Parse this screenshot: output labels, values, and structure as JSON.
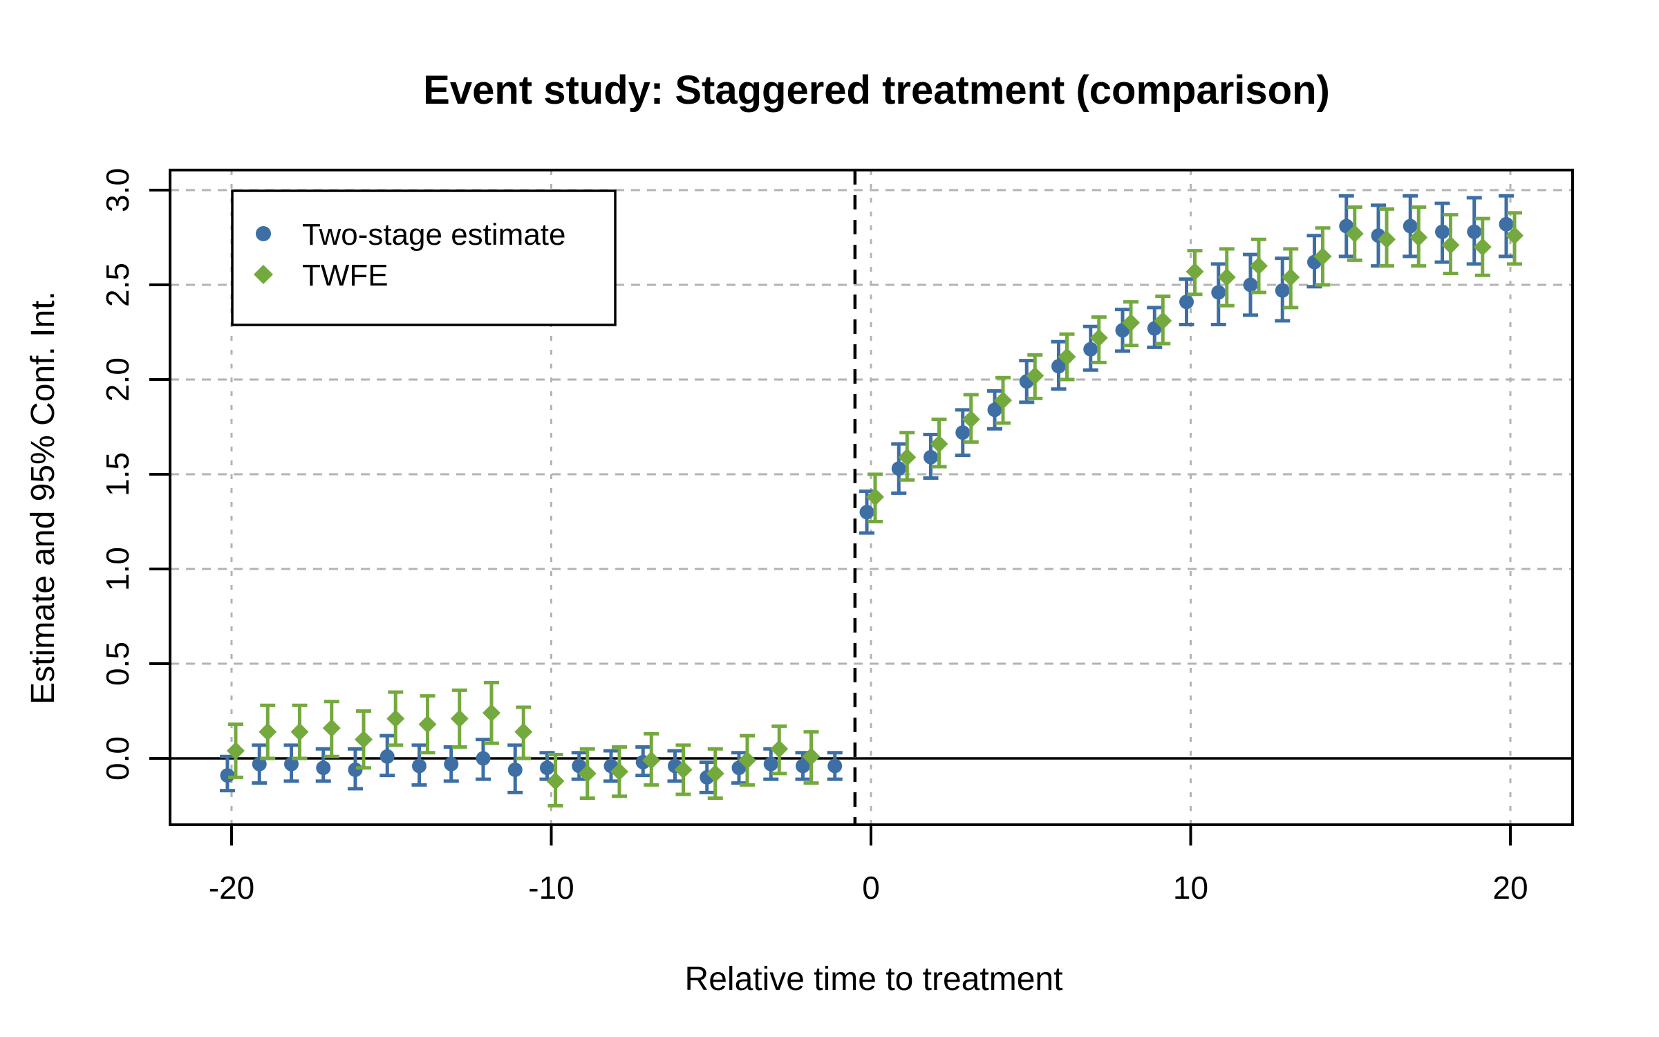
{
  "title": "Event study: Staggered treatment (comparison)",
  "axes": {
    "x_label": "Relative time to treatment",
    "y_label": "Estimate and 95% Conf. Int.",
    "x_ticks": [
      -20,
      -10,
      0,
      10,
      20
    ],
    "y_ticks": [
      0.0,
      0.5,
      1.0,
      1.5,
      2.0,
      2.5,
      3.0
    ]
  },
  "legend": {
    "items": [
      {
        "label": "Two-stage estimate",
        "marker": "circle-icon",
        "color": "#3d6fa5"
      },
      {
        "label": "TWFE",
        "marker": "diamond-icon",
        "color": "#74a93e"
      }
    ]
  },
  "colors": {
    "two_stage": "#3d6fa5",
    "twfe": "#74a93e",
    "grid": "#b3b3b3",
    "axis": "#000000",
    "background": "#ffffff"
  },
  "reference_lines": {
    "treatment_time_x": -0.5,
    "zero_y": 0
  },
  "chart_data": {
    "type": "scatter",
    "title": "Event study: Staggered treatment (comparison)",
    "xlabel": "Relative time to treatment",
    "ylabel": "Estimate and 95% Conf. Int.",
    "xlim": [
      -22,
      22
    ],
    "ylim": [
      -0.35,
      3.1
    ],
    "grid": true,
    "legend_position": "top-left",
    "error_bars": "95% confidence intervals",
    "series": [
      {
        "name": "Two-stage estimate",
        "marker": "circle",
        "color": "#3d6fa5",
        "x": [
          -20,
          -19,
          -18,
          -17,
          -16,
          -15,
          -14,
          -13,
          -12,
          -11,
          -10,
          -9,
          -8,
          -7,
          -6,
          -5,
          -4,
          -3,
          -2,
          -1,
          0,
          1,
          2,
          3,
          4,
          5,
          6,
          7,
          8,
          9,
          10,
          11,
          12,
          13,
          14,
          15,
          16,
          17,
          18,
          19,
          20
        ],
        "y": [
          -0.09,
          -0.03,
          -0.03,
          -0.05,
          -0.06,
          0.01,
          -0.04,
          -0.03,
          0.0,
          -0.06,
          -0.05,
          -0.04,
          -0.04,
          -0.02,
          -0.04,
          -0.1,
          -0.05,
          -0.03,
          -0.04,
          -0.04,
          1.3,
          1.53,
          1.59,
          1.72,
          1.84,
          1.99,
          2.07,
          2.16,
          2.26,
          2.27,
          2.41,
          2.46,
          2.5,
          2.47,
          2.62,
          2.81,
          2.76,
          2.81,
          2.78,
          2.78,
          2.82
        ],
        "ci_low": [
          -0.17,
          -0.13,
          -0.12,
          -0.12,
          -0.16,
          -0.09,
          -0.14,
          -0.12,
          -0.11,
          -0.18,
          -0.11,
          -0.11,
          -0.12,
          -0.09,
          -0.12,
          -0.18,
          -0.13,
          -0.11,
          -0.11,
          -0.11,
          1.19,
          1.4,
          1.48,
          1.6,
          1.74,
          1.88,
          1.95,
          2.05,
          2.15,
          2.17,
          2.29,
          2.29,
          2.34,
          2.31,
          2.49,
          2.65,
          2.6,
          2.65,
          2.62,
          2.61,
          2.65
        ],
        "ci_high": [
          0.01,
          0.07,
          0.07,
          0.05,
          0.05,
          0.12,
          0.07,
          0.06,
          0.1,
          0.07,
          0.03,
          0.03,
          0.04,
          0.06,
          0.04,
          -0.02,
          0.03,
          0.05,
          0.03,
          0.03,
          1.41,
          1.66,
          1.71,
          1.84,
          1.94,
          2.1,
          2.2,
          2.28,
          2.37,
          2.38,
          2.53,
          2.61,
          2.66,
          2.64,
          2.76,
          2.97,
          2.92,
          2.97,
          2.93,
          2.96,
          2.97
        ]
      },
      {
        "name": "TWFE",
        "marker": "diamond",
        "color": "#74a93e",
        "x": [
          -20,
          -19,
          -18,
          -17,
          -16,
          -15,
          -14,
          -13,
          -12,
          -11,
          -10,
          -9,
          -8,
          -7,
          -6,
          -5,
          -4,
          -3,
          -2,
          0,
          1,
          2,
          3,
          4,
          5,
          6,
          7,
          8,
          9,
          10,
          11,
          12,
          13,
          14,
          15,
          16,
          17,
          18,
          19,
          20
        ],
        "y": [
          0.04,
          0.14,
          0.14,
          0.16,
          0.1,
          0.21,
          0.18,
          0.21,
          0.24,
          0.14,
          -0.12,
          -0.08,
          -0.07,
          -0.01,
          -0.06,
          -0.08,
          -0.01,
          0.05,
          0.01,
          1.38,
          1.59,
          1.66,
          1.79,
          1.89,
          2.02,
          2.12,
          2.22,
          2.3,
          2.31,
          2.57,
          2.54,
          2.6,
          2.54,
          2.65,
          2.77,
          2.74,
          2.75,
          2.71,
          2.7,
          2.76
        ],
        "ci_low": [
          -0.1,
          0.0,
          0.0,
          0.01,
          -0.05,
          0.07,
          0.03,
          0.06,
          0.08,
          0.0,
          -0.25,
          -0.21,
          -0.2,
          -0.14,
          -0.19,
          -0.21,
          -0.14,
          -0.08,
          -0.13,
          1.25,
          1.47,
          1.54,
          1.67,
          1.77,
          1.9,
          2.0,
          2.09,
          2.18,
          2.19,
          2.45,
          2.39,
          2.46,
          2.38,
          2.5,
          2.63,
          2.6,
          2.6,
          2.56,
          2.55,
          2.61
        ],
        "ci_high": [
          0.18,
          0.28,
          0.28,
          0.3,
          0.25,
          0.35,
          0.33,
          0.36,
          0.4,
          0.27,
          0.02,
          0.05,
          0.06,
          0.13,
          0.07,
          0.05,
          0.12,
          0.17,
          0.14,
          1.5,
          1.72,
          1.79,
          1.92,
          2.01,
          2.13,
          2.24,
          2.33,
          2.41,
          2.44,
          2.68,
          2.69,
          2.74,
          2.69,
          2.8,
          2.91,
          2.9,
          2.91,
          2.87,
          2.85,
          2.88
        ]
      }
    ]
  }
}
